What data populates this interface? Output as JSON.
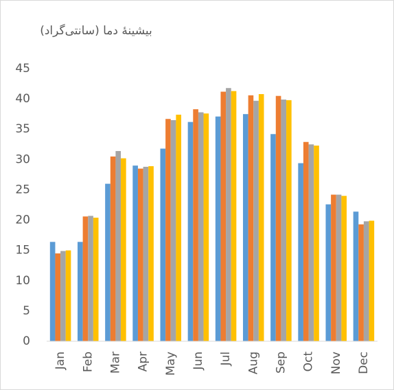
{
  "chart_data": {
    "type": "bar",
    "title": "بیشینهٔ دما (سانتی‌گراد)",
    "categories": [
      "Jan",
      "Feb",
      "Mar",
      "Apr",
      "May",
      "Jun",
      "Jul",
      "Aug",
      "Sep",
      "Oct",
      "Nov",
      "Dec"
    ],
    "series": [
      {
        "color": "#5b9bd5",
        "values": [
          16.4,
          16.4,
          26.0,
          29.0,
          31.8,
          36.2,
          37.1,
          37.5,
          34.2,
          29.4,
          22.6,
          21.4
        ]
      },
      {
        "color": "#ed7d31",
        "values": [
          14.5,
          20.6,
          30.5,
          28.5,
          36.7,
          38.3,
          41.2,
          40.6,
          40.5,
          32.9,
          24.2,
          19.3
        ]
      },
      {
        "color": "#a5a5a5",
        "values": [
          14.9,
          20.7,
          31.4,
          28.8,
          36.5,
          37.8,
          41.8,
          39.7,
          39.9,
          32.5,
          24.2,
          19.8
        ]
      },
      {
        "color": "#ffc000",
        "values": [
          15.0,
          20.4,
          30.2,
          28.9,
          37.4,
          37.6,
          41.3,
          40.8,
          39.8,
          32.3,
          24.0,
          19.9
        ]
      }
    ],
    "ylim": [
      0,
      45
    ],
    "yticks": [
      0,
      5,
      10,
      15,
      20,
      25,
      30,
      35,
      40,
      45
    ],
    "grid": false
  }
}
